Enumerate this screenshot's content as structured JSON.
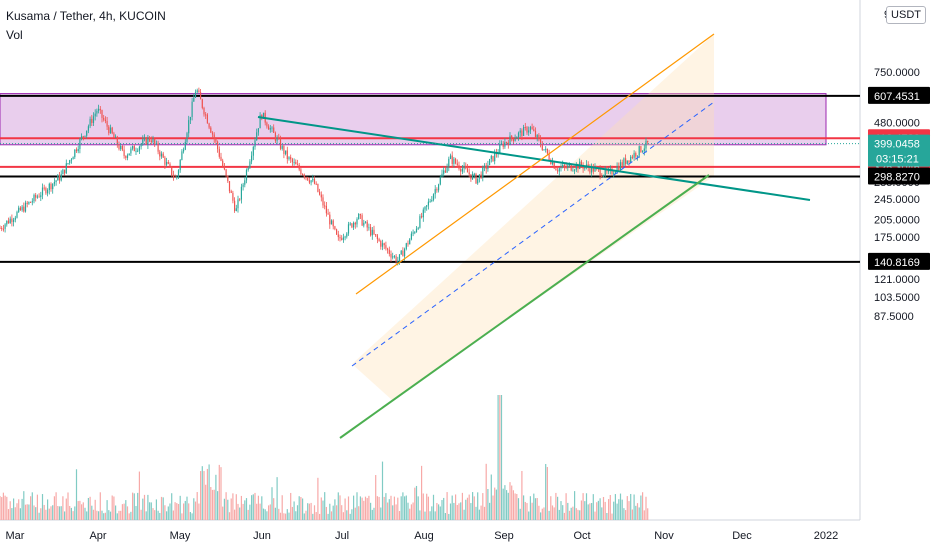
{
  "header": {
    "symbol_line": "Kusama / Tether, 4h, KUCOIN",
    "indicator": "Vol",
    "currency": "USDT",
    "axis_clipped_top": "9"
  },
  "colors": {
    "up_candle": "#26a69a",
    "down_candle": "#ef5350",
    "zone_fill": "#e1bee7",
    "zone_border": "#9c27b0",
    "channel_upper": "#ff9800",
    "channel_lower": "#4caf50",
    "channel_mid": "#2962ff",
    "downtrend": "#009688",
    "support_resistance_red": "#f23645",
    "support_resistance_black": "#000000"
  },
  "chart_data": {
    "type": "candlestick",
    "x_axis_labels": [
      "Mar",
      "Apr",
      "May",
      "Jun",
      "Jul",
      "Aug",
      "Sep",
      "Oct",
      "Nov",
      "Dec",
      "2022"
    ],
    "y_axis_labels": [
      "750.0000",
      "480.0000",
      "345.0000",
      "285.0000",
      "245.0000",
      "205.0000",
      "175.0000",
      "145.0000",
      "121.0000",
      "103.5000",
      "87.5000"
    ],
    "y_scale": "log",
    "price_lines": [
      {
        "label": "607.4531",
        "value": 607.4531,
        "color": "#000000"
      },
      {
        "label": "418.4780",
        "value": 418.478,
        "color": "#f23645"
      },
      {
        "label": "325.3046",
        "value": 325.3046,
        "color": "#f23645"
      },
      {
        "label": "298.8270",
        "value": 298.827,
        "color": "#000000"
      },
      {
        "label": "140.8169",
        "value": 140.8169,
        "color": "#000000"
      }
    ],
    "last_price": {
      "label": "399.0458",
      "value": 399.0458,
      "countdown": "03:15:21"
    },
    "resistance_zone": {
      "from_date": "Mar",
      "to_date": "Nov",
      "low": 395,
      "high": 620
    },
    "waypoints": [
      [
        "Mar",
        190
      ],
      [
        "Mar",
        300
      ],
      [
        "Apr",
        540
      ],
      [
        "Apr",
        360
      ],
      [
        "Apr",
        420
      ],
      [
        "May",
        290
      ],
      [
        "May",
        650
      ],
      [
        "May",
        400
      ],
      [
        "May",
        220
      ],
      [
        "Jun",
        520
      ],
      [
        "Jun",
        350
      ],
      [
        "Jun",
        280
      ],
      [
        "Jul",
        170
      ],
      [
        "Jul",
        210
      ],
      [
        "Jul",
        170
      ],
      [
        "Jul",
        142
      ],
      [
        "Aug",
        215
      ],
      [
        "Aug",
        350
      ],
      [
        "Aug",
        290
      ],
      [
        "Sep",
        400
      ],
      [
        "Sep",
        460
      ],
      [
        "Sep",
        320
      ],
      [
        "Oct",
        330
      ],
      [
        "Oct",
        305
      ],
      [
        "Oct",
        399
      ]
    ],
    "volume_peak_month": "Sep"
  }
}
